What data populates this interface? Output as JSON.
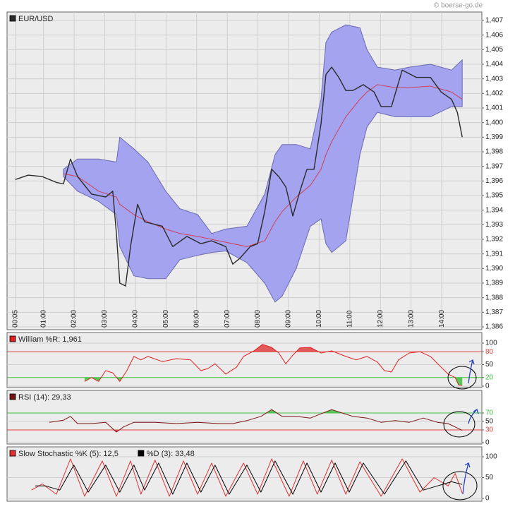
{
  "watermark": "© boerse-go.de",
  "chart_data": [
    {
      "type": "line",
      "xlim": [
        -0.19,
        15.31
      ],
      "xticks": [
        {
          "value": 0.083,
          "label": "00:05"
        },
        {
          "value": 1,
          "label": "01:00"
        },
        {
          "value": 2,
          "label": "02:00"
        },
        {
          "value": 3,
          "label": "03:00"
        },
        {
          "value": 4,
          "label": "04:00"
        },
        {
          "value": 5,
          "label": "05:00"
        },
        {
          "value": 6,
          "label": "06:00"
        },
        {
          "value": 7,
          "label": "07:00"
        },
        {
          "value": 8,
          "label": "08:00"
        },
        {
          "value": 9,
          "label": "09:00"
        },
        {
          "value": 10,
          "label": "10:00"
        },
        {
          "value": 11,
          "label": "11:00"
        },
        {
          "value": 12,
          "label": "12:00"
        },
        {
          "value": 13,
          "label": "13:00"
        },
        {
          "value": 14,
          "label": "14:00"
        }
      ],
      "ylim": [
        1.386,
        1.407
      ],
      "yticks": [
        {
          "value": 1.386,
          "label": "1,386"
        },
        {
          "value": 1.387,
          "label": "1,387"
        },
        {
          "value": 1.388,
          "label": "1,388"
        },
        {
          "value": 1.389,
          "label": "1,389"
        },
        {
          "value": 1.39,
          "label": "1,390"
        },
        {
          "value": 1.391,
          "label": "1,391"
        },
        {
          "value": 1.392,
          "label": "1,392"
        },
        {
          "value": 1.393,
          "label": "1,393"
        },
        {
          "value": 1.394,
          "label": "1,394"
        },
        {
          "value": 1.395,
          "label": "1,395"
        },
        {
          "value": 1.396,
          "label": "1,396"
        },
        {
          "value": 1.397,
          "label": "1,397"
        },
        {
          "value": 1.398,
          "label": "1,398"
        },
        {
          "value": 1.399,
          "label": "1,399"
        },
        {
          "value": 1.4,
          "label": "1,400"
        },
        {
          "value": 1.401,
          "label": "1,401"
        },
        {
          "value": 1.402,
          "label": "1,402"
        },
        {
          "value": 1.403,
          "label": "1,403"
        },
        {
          "value": 1.404,
          "label": "1,404"
        },
        {
          "value": 1.405,
          "label": "1,405"
        },
        {
          "value": 1.406,
          "label": "1,406"
        },
        {
          "value": 1.407,
          "label": "1,407"
        }
      ],
      "grid": true,
      "band": {
        "color": "#a3a3f0",
        "edge_color": "#6a6ab0",
        "middle_color": "#d0405a",
        "x": [
          1.65,
          2.11,
          2.8,
          3.38,
          3.49,
          3.95,
          4.41,
          4.99,
          5.45,
          6.03,
          6.49,
          6.95,
          7.64,
          8.22,
          8.56,
          8.79,
          9.25,
          9.71,
          10.06,
          10.22,
          10.41,
          10.87,
          11.33,
          11.56,
          11.9,
          12.48,
          12.94,
          13.63,
          14.32,
          14.67
        ],
        "upper": [
          1.3968,
          1.3975,
          1.3975,
          1.3973,
          1.399,
          1.3982,
          1.3973,
          1.3953,
          1.3941,
          1.3937,
          1.3924,
          1.3927,
          1.3929,
          1.3951,
          1.3978,
          1.3985,
          1.3985,
          1.3982,
          1.4016,
          1.4055,
          1.4062,
          1.4067,
          1.4065,
          1.405,
          1.4038,
          1.4036,
          1.4038,
          1.404,
          1.4036,
          1.4043
        ],
        "middle": [
          1.3965,
          1.3963,
          1.3953,
          1.3949,
          1.3944,
          1.3937,
          1.3932,
          1.3927,
          1.3924,
          1.3922,
          1.392,
          1.3918,
          1.3915,
          1.3919,
          1.3932,
          1.3939,
          1.3949,
          1.3957,
          1.3968,
          1.3978,
          1.3987,
          1.4004,
          1.4016,
          1.4021,
          1.4026,
          1.4024,
          1.4024,
          1.4025,
          1.4021,
          1.4016
        ],
        "lower": [
          1.3963,
          1.3953,
          1.3946,
          1.3937,
          1.3915,
          1.3895,
          1.3893,
          1.3893,
          1.3906,
          1.3909,
          1.3911,
          1.3912,
          1.3904,
          1.389,
          1.3877,
          1.3881,
          1.39,
          1.3929,
          1.3934,
          1.3917,
          1.3911,
          1.3919,
          1.3978,
          1.3997,
          1.4007,
          1.4004,
          1.4004,
          1.4004,
          1.4011,
          1.4011
        ]
      },
      "series": [
        {
          "name": "EUR/USD",
          "color": "#2a2a2a",
          "x": [
            0.08,
            0.5,
            0.96,
            1.42,
            1.65,
            1.88,
            2.11,
            2.57,
            3.03,
            3.26,
            3.38,
            3.49,
            3.68,
            3.84,
            4.07,
            4.3,
            4.88,
            5.22,
            5.68,
            6.14,
            6.49,
            6.95,
            7.18,
            7.41,
            7.75,
            7.99,
            8.22,
            8.45,
            8.68,
            8.91,
            9.14,
            9.37,
            9.6,
            9.83,
            10.06,
            10.22,
            10.41,
            10.64,
            10.87,
            11.1,
            11.44,
            11.79,
            12.02,
            12.36,
            12.71,
            13.17,
            13.63,
            13.98,
            14.32,
            14.51,
            14.67
          ],
          "values": [
            1.3961,
            1.3964,
            1.3963,
            1.3959,
            1.3958,
            1.3975,
            1.3963,
            1.3951,
            1.3949,
            1.3953,
            1.3924,
            1.389,
            1.3888,
            1.3915,
            1.3944,
            1.3932,
            1.3929,
            1.3915,
            1.3922,
            1.3917,
            1.3919,
            1.3915,
            1.3903,
            1.3907,
            1.3915,
            1.3917,
            1.3939,
            1.3968,
            1.3963,
            1.3956,
            1.3936,
            1.3953,
            1.3968,
            1.3968,
            1.3999,
            1.4033,
            1.4038,
            1.4031,
            1.4022,
            1.4022,
            1.4026,
            1.4021,
            1.4011,
            1.4011,
            1.4036,
            1.4031,
            1.4031,
            1.4021,
            1.4016,
            1.4007,
            1.399
          ]
        }
      ]
    },
    {
      "type": "line",
      "xlim": [
        -0.19,
        15.31
      ],
      "ylim": [
        0,
        100
      ],
      "yticks": [
        0,
        20,
        50,
        80,
        100
      ],
      "grid": true,
      "shade": true,
      "levels": [
        {
          "value": 80,
          "color": "#e04040"
        },
        {
          "value": 20,
          "color": "#40c040"
        }
      ],
      "series": [
        {
          "name": "William %R: 1,961",
          "color": "#e02020",
          "x": [
            2.34,
            2.57,
            2.8,
            3.03,
            3.26,
            3.49,
            3.72,
            3.95,
            4.18,
            4.41,
            4.88,
            5.34,
            5.8,
            6.14,
            6.37,
            6.6,
            6.95,
            7.3,
            7.53,
            7.87,
            8.15,
            8.45,
            8.68,
            8.91,
            9.14,
            9.37,
            9.71,
            10.06,
            10.41,
            10.87,
            11.21,
            11.56,
            11.9,
            12.13,
            12.36,
            12.59,
            12.94,
            13.29,
            13.63,
            13.98,
            14.21,
            14.44,
            14.55,
            14.67
          ],
          "values": [
            11,
            20,
            11,
            36,
            31,
            11,
            36,
            69,
            61,
            69,
            57,
            64,
            61,
            36,
            41,
            52,
            28,
            44,
            69,
            82,
            97,
            90,
            77,
            52,
            72,
            89,
            90,
            77,
            82,
            69,
            61,
            69,
            56,
            36,
            33,
            61,
            77,
            80,
            69,
            44,
            28,
            20,
            3,
            2
          ]
        }
      ]
    },
    {
      "type": "line",
      "xlim": [
        -0.19,
        15.31
      ],
      "ylim": [
        0,
        100
      ],
      "yticks": [
        0,
        30,
        50,
        70
      ],
      "grid": true,
      "shade": true,
      "levels": [
        {
          "value": 70,
          "color": "#40c040"
        },
        {
          "value": 30,
          "color": "#e04040"
        }
      ],
      "series": [
        {
          "name": "RSI (14): 29,33",
          "color": "#7a1414",
          "x": [
            1.19,
            1.65,
            1.88,
            2.11,
            2.57,
            3.03,
            3.38,
            3.61,
            3.95,
            4.64,
            5.34,
            6.03,
            6.72,
            7.18,
            7.64,
            8.1,
            8.45,
            8.79,
            9.25,
            9.71,
            10.06,
            10.41,
            10.75,
            11.1,
            11.56,
            12.02,
            12.48,
            12.94,
            13.4,
            13.86,
            14.21,
            14.44,
            14.67
          ],
          "values": [
            48,
            53,
            62,
            45,
            45,
            48,
            25,
            37,
            48,
            48,
            45,
            48,
            45,
            45,
            52,
            62,
            78,
            62,
            62,
            58,
            68,
            78,
            70,
            62,
            58,
            48,
            52,
            48,
            58,
            48,
            45,
            37,
            29
          ]
        }
      ]
    },
    {
      "type": "line",
      "xlim": [
        -0.19,
        15.31
      ],
      "ylim": [
        0,
        100
      ],
      "yticks": [
        0,
        50,
        100
      ],
      "grid": true,
      "series": [
        {
          "name": "Slow Stochastic %K (5): 12,5",
          "color": "#e03030",
          "x": [
            0.61,
            0.96,
            1.42,
            1.88,
            2.34,
            2.92,
            3.38,
            3.84,
            4.18,
            4.64,
            5.11,
            5.57,
            6.03,
            6.49,
            6.95,
            7.53,
            7.99,
            8.45,
            9.02,
            9.48,
            9.94,
            10.41,
            10.87,
            11.33,
            12.02,
            12.71,
            13.29,
            13.75,
            14.21,
            14.44,
            14.67
          ],
          "values": [
            20,
            35,
            10,
            95,
            5,
            90,
            5,
            90,
            10,
            92,
            5,
            90,
            10,
            85,
            5,
            85,
            10,
            95,
            5,
            90,
            10,
            92,
            10,
            88,
            5,
            95,
            15,
            50,
            30,
            60,
            12.5
          ]
        },
        {
          "name": "%D (3): 33,48",
          "color": "#000000",
          "x": [
            0.73,
            1.07,
            1.53,
            1.99,
            2.46,
            3.03,
            3.49,
            3.95,
            4.3,
            4.76,
            5.22,
            5.68,
            6.14,
            6.6,
            7.06,
            7.64,
            8.1,
            8.56,
            9.14,
            9.6,
            10.06,
            10.52,
            10.98,
            11.44,
            12.13,
            12.83,
            13.4,
            13.86,
            14.32,
            14.67
          ],
          "values": [
            30,
            30,
            20,
            80,
            15,
            80,
            15,
            80,
            20,
            85,
            10,
            85,
            15,
            80,
            10,
            80,
            15,
            90,
            10,
            85,
            15,
            85,
            15,
            85,
            10,
            90,
            20,
            30,
            40,
            33.48
          ]
        }
      ]
    }
  ]
}
